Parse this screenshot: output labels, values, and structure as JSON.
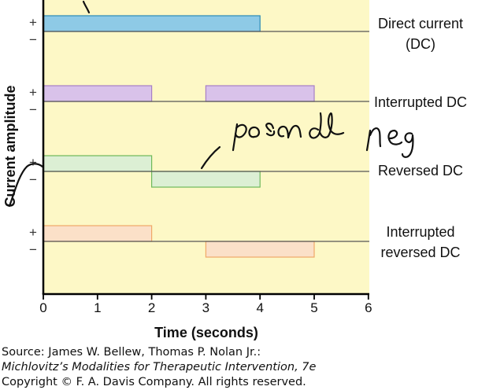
{
  "chart_data": {
    "type": "diagram",
    "xlabel": "Time (seconds)",
    "ylabel": "Current amplitude",
    "x_ticks": [
      "0",
      "1",
      "2",
      "3",
      "4",
      "5",
      "6"
    ],
    "xlim": [
      0,
      6
    ],
    "series": [
      {
        "name": "Direct current (DC)",
        "label_lines": [
          "Direct current",
          "(DC)"
        ],
        "color": "#8ecae6",
        "stroke": "#2a8bb6",
        "pulses": [
          {
            "start": 0,
            "end": 4,
            "polarity": "+"
          }
        ]
      },
      {
        "name": "Interrupted DC",
        "label_lines": [
          "Interrupted DC"
        ],
        "color": "#d9c2ea",
        "stroke": "#a77fc6",
        "pulses": [
          {
            "start": 0,
            "end": 2,
            "polarity": "+"
          },
          {
            "start": 3,
            "end": 5,
            "polarity": "+"
          }
        ]
      },
      {
        "name": "Reversed DC",
        "label_lines": [
          "Reversed DC"
        ],
        "color": "#dcefd4",
        "stroke": "#6db85a",
        "pulses": [
          {
            "start": 0,
            "end": 2,
            "polarity": "+"
          },
          {
            "start": 2,
            "end": 4,
            "polarity": "-"
          }
        ]
      },
      {
        "name": "Interrupted reversed DC",
        "label_lines": [
          "Interrupted",
          "reversed DC"
        ],
        "color": "#fbe0c8",
        "stroke": "#f0a868",
        "pulses": [
          {
            "start": 0,
            "end": 2,
            "polarity": "+"
          },
          {
            "start": 3,
            "end": 5,
            "polarity": "-"
          }
        ]
      }
    ],
    "polarity_symbols": {
      "plus": "+",
      "minus": "−"
    },
    "colors": {
      "background": "#fdf8c6",
      "axis": "#000000",
      "baseline": "#555555",
      "ink": "#111111"
    }
  },
  "handwritten_note": "pos and neg",
  "source": {
    "line1": "Source: James W. Bellew, Thomas P. Nolan Jr.:",
    "line2": "Michlovitz’s Modalities for Therapeutic Intervention, 7e",
    "line3": "Copyright © F. A. Davis Company. All rights reserved."
  }
}
